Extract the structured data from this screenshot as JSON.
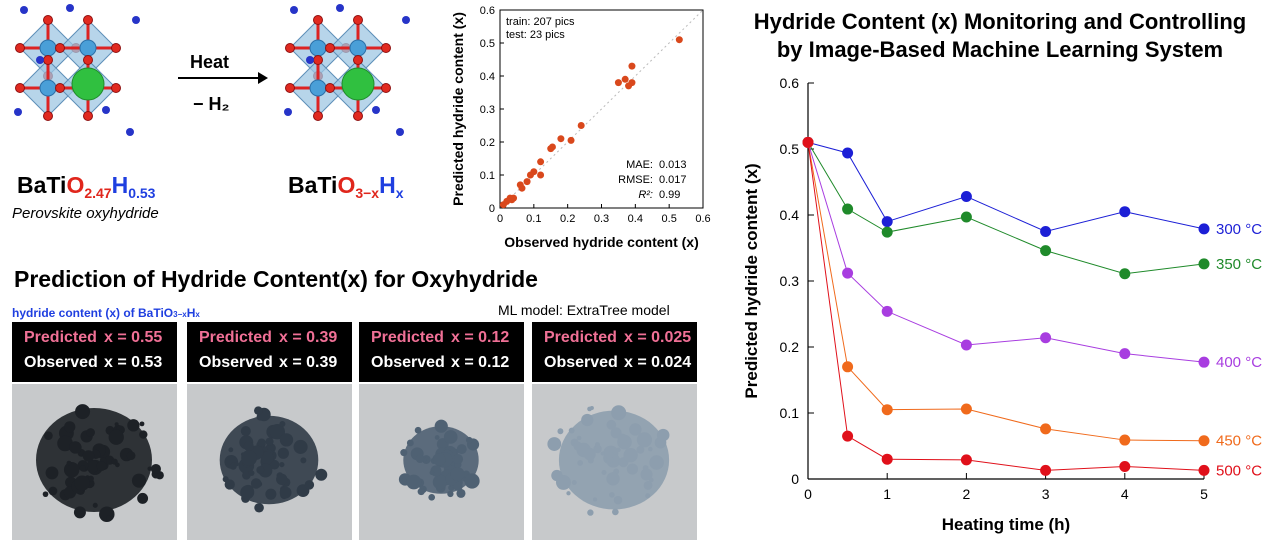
{
  "header": {
    "formula_left": {
      "a": "BaTi",
      "b": "O",
      "b_sub": "2.47",
      "c": "H",
      "c_sub": "0.53"
    },
    "formula_left_caption": "Perovskite oxyhydride",
    "formula_right": {
      "a": "BaTi",
      "b": "O",
      "b_sub": "3−x",
      "c": "H",
      "c_sub": "x"
    },
    "arrow_top": "Heat",
    "arrow_bottom": "− H₂"
  },
  "prediction_section": {
    "title": "Prediction of Hydride Content(x) for Oxyhydride",
    "hydride_label": {
      "text": "hydride content (x) of BaTiO",
      "sub": "3−x",
      "tail": "H",
      "tail_sub": "x"
    },
    "ml_model": "ML model: ExtraTree model",
    "predicted_label": "Predicted",
    "observed_label": "Observed",
    "panels": [
      {
        "predicted": "x = 0.55",
        "observed": "x = 0.53",
        "shade": "#1d2126"
      },
      {
        "predicted": "x = 0.39",
        "observed": "x = 0.39",
        "shade": "#303b47"
      },
      {
        "predicted": "x = 0.12",
        "observed": "x = 0.12",
        "shade": "#4f6173"
      },
      {
        "predicted": "x = 0.025",
        "observed": "x = 0.024",
        "shade": "#8d9eae"
      }
    ]
  },
  "right_title": {
    "line1": "Hydride Content (x) Monitoring and Controlling",
    "line2": "by Image-Based Machine Learning System"
  },
  "chart_data": [
    {
      "type": "scatter",
      "xlabel": "Observed hydride content (x)",
      "ylabel": "Predicted hydride content (x)",
      "xlim": [
        0,
        0.6
      ],
      "ylim": [
        0,
        0.6
      ],
      "xticks": [
        "0",
        "0.1",
        "0.2",
        "0.3",
        "0.4",
        "0.5",
        "0.6"
      ],
      "yticks": [
        "0",
        "0.1",
        "0.2",
        "0.3",
        "0.4",
        "0.5",
        "0.6"
      ],
      "legend_text": [
        "train: 207 pics",
        "test:   23 pics"
      ],
      "stats": [
        {
          "label": "MAE:",
          "value": "0.013"
        },
        {
          "label": "RMSE:",
          "value": "0.017"
        },
        {
          "label": "R²:",
          "value": "0.99"
        }
      ],
      "color": "#d9481c",
      "points": [
        [
          0.01,
          0.01
        ],
        [
          0.02,
          0.02
        ],
        [
          0.03,
          0.03
        ],
        [
          0.035,
          0.025
        ],
        [
          0.04,
          0.03
        ],
        [
          0.06,
          0.07
        ],
        [
          0.065,
          0.06
        ],
        [
          0.08,
          0.08
        ],
        [
          0.09,
          0.1
        ],
        [
          0.1,
          0.11
        ],
        [
          0.12,
          0.1
        ],
        [
          0.12,
          0.14
        ],
        [
          0.15,
          0.18
        ],
        [
          0.155,
          0.185
        ],
        [
          0.18,
          0.21
        ],
        [
          0.21,
          0.205
        ],
        [
          0.24,
          0.25
        ],
        [
          0.35,
          0.38
        ],
        [
          0.37,
          0.39
        ],
        [
          0.38,
          0.37
        ],
        [
          0.39,
          0.43
        ],
        [
          0.39,
          0.38
        ],
        [
          0.53,
          0.51
        ]
      ]
    },
    {
      "type": "line",
      "xlabel": "Heating time (h)",
      "ylabel": "Predicted hydride content (x)",
      "xlim": [
        0,
        5
      ],
      "ylim": [
        0,
        0.6
      ],
      "xticks": [
        "0",
        "1",
        "2",
        "3",
        "4",
        "5"
      ],
      "yticks": [
        "0",
        "0.1",
        "0.2",
        "0.3",
        "0.4",
        "0.5",
        "0.6"
      ],
      "x": [
        0,
        0.5,
        1,
        2,
        3,
        4,
        5
      ],
      "series": [
        {
          "name": "300 °C",
          "color": "#1c1fd6",
          "values": [
            0.51,
            0.494,
            0.39,
            0.428,
            0.375,
            0.405,
            0.379
          ]
        },
        {
          "name": "350 °C",
          "color": "#1f8a2a",
          "values": [
            0.51,
            0.409,
            0.374,
            0.397,
            0.346,
            0.311,
            0.326
          ]
        },
        {
          "name": "400 °C",
          "color": "#a83de0",
          "values": [
            0.51,
            0.312,
            0.254,
            0.203,
            0.214,
            0.19,
            0.177
          ]
        },
        {
          "name": "450 °C",
          "color": "#f06a1c",
          "values": [
            0.51,
            0.17,
            0.105,
            0.106,
            0.076,
            0.059,
            0.058
          ]
        },
        {
          "name": "500 °C",
          "color": "#e0101a",
          "values": [
            0.51,
            0.065,
            0.03,
            0.029,
            0.013,
            0.019,
            0.013
          ]
        }
      ]
    }
  ]
}
